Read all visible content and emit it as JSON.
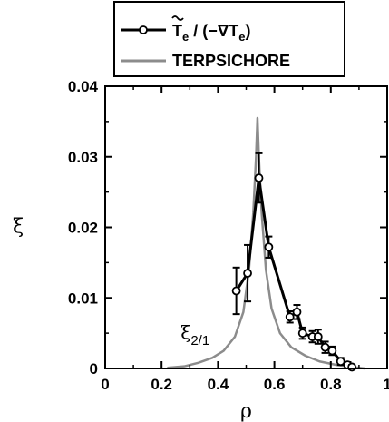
{
  "chart_data": {
    "type": "line",
    "xlabel": "ρ",
    "ylabel": "ξ",
    "xlim": [
      0,
      1
    ],
    "ylim": [
      0,
      0.04
    ],
    "x_ticks": [
      {
        "value": 0,
        "label": "0"
      },
      {
        "value": 0.2,
        "label": "0.2"
      },
      {
        "value": 0.4,
        "label": "0.4"
      },
      {
        "value": 0.6,
        "label": "0.6"
      },
      {
        "value": 0.8,
        "label": "0.8"
      },
      {
        "value": 1,
        "label": "1"
      }
    ],
    "y_ticks": [
      {
        "value": 0,
        "label": "0"
      },
      {
        "value": 0.01,
        "label": "0.01"
      },
      {
        "value": 0.02,
        "label": "0.02"
      },
      {
        "value": 0.03,
        "label": "0.03"
      },
      {
        "value": 0.04,
        "label": "0.04"
      }
    ],
    "legend": {
      "placement": "top",
      "entries": [
        {
          "series": 0,
          "label_main": "T",
          "label_sub": "e",
          "label_rest": " / (−∇T",
          "label_sub2": "e",
          "label_end": ")"
        },
        {
          "series": 1,
          "label_main": "TERPSICHORE",
          "label_sub": "",
          "label_rest": "",
          "label_sub2": "",
          "label_end": ""
        }
      ]
    },
    "annotation": {
      "main": "ξ",
      "sub": "2/1",
      "x": 0.3,
      "y": 0.0035
    },
    "series": [
      {
        "style": "line-markers",
        "color": "#000000",
        "points": [
          {
            "x": 0.465,
            "y": 0.011,
            "err": 0.0033
          },
          {
            "x": 0.505,
            "y": 0.0135,
            "err": 0.004
          },
          {
            "x": 0.545,
            "y": 0.027,
            "err": 0.0035
          },
          {
            "x": 0.58,
            "y": 0.0172,
            "err": 0.0015
          },
          {
            "x": 0.655,
            "y": 0.0073,
            "err": 0.0008
          },
          {
            "x": 0.68,
            "y": 0.008,
            "err": 0.001
          },
          {
            "x": 0.7,
            "y": 0.005,
            "err": 0.0008
          },
          {
            "x": 0.735,
            "y": 0.0045,
            "err": 0.0008
          },
          {
            "x": 0.755,
            "y": 0.0045,
            "err": 0.001
          },
          {
            "x": 0.78,
            "y": 0.003,
            "err": 0.0008
          },
          {
            "x": 0.805,
            "y": 0.0025,
            "err": 0.0006
          },
          {
            "x": 0.835,
            "y": 0.001,
            "err": 0.0005
          },
          {
            "x": 0.86,
            "y": 0.0005,
            "err": 0.0004
          },
          {
            "x": 0.875,
            "y": 0.0002,
            "err": 0.0003
          }
        ]
      },
      {
        "style": "line",
        "color": "#8c8c8c",
        "points": [
          {
            "x": 0.22,
            "y": 0.0001
          },
          {
            "x": 0.28,
            "y": 0.0003
          },
          {
            "x": 0.33,
            "y": 0.0008
          },
          {
            "x": 0.38,
            "y": 0.0015
          },
          {
            "x": 0.42,
            "y": 0.0025
          },
          {
            "x": 0.46,
            "y": 0.0045
          },
          {
            "x": 0.49,
            "y": 0.008
          },
          {
            "x": 0.51,
            "y": 0.014
          },
          {
            "x": 0.525,
            "y": 0.022
          },
          {
            "x": 0.535,
            "y": 0.03
          },
          {
            "x": 0.54,
            "y": 0.0355
          },
          {
            "x": 0.545,
            "y": 0.03
          },
          {
            "x": 0.555,
            "y": 0.022
          },
          {
            "x": 0.57,
            "y": 0.014
          },
          {
            "x": 0.59,
            "y": 0.0085
          },
          {
            "x": 0.62,
            "y": 0.005
          },
          {
            "x": 0.66,
            "y": 0.003
          },
          {
            "x": 0.71,
            "y": 0.0018
          },
          {
            "x": 0.76,
            "y": 0.001
          },
          {
            "x": 0.82,
            "y": 0.0005
          },
          {
            "x": 0.88,
            "y": 0.0002
          },
          {
            "x": 0.92,
            "y": 0.0
          }
        ]
      }
    ]
  }
}
